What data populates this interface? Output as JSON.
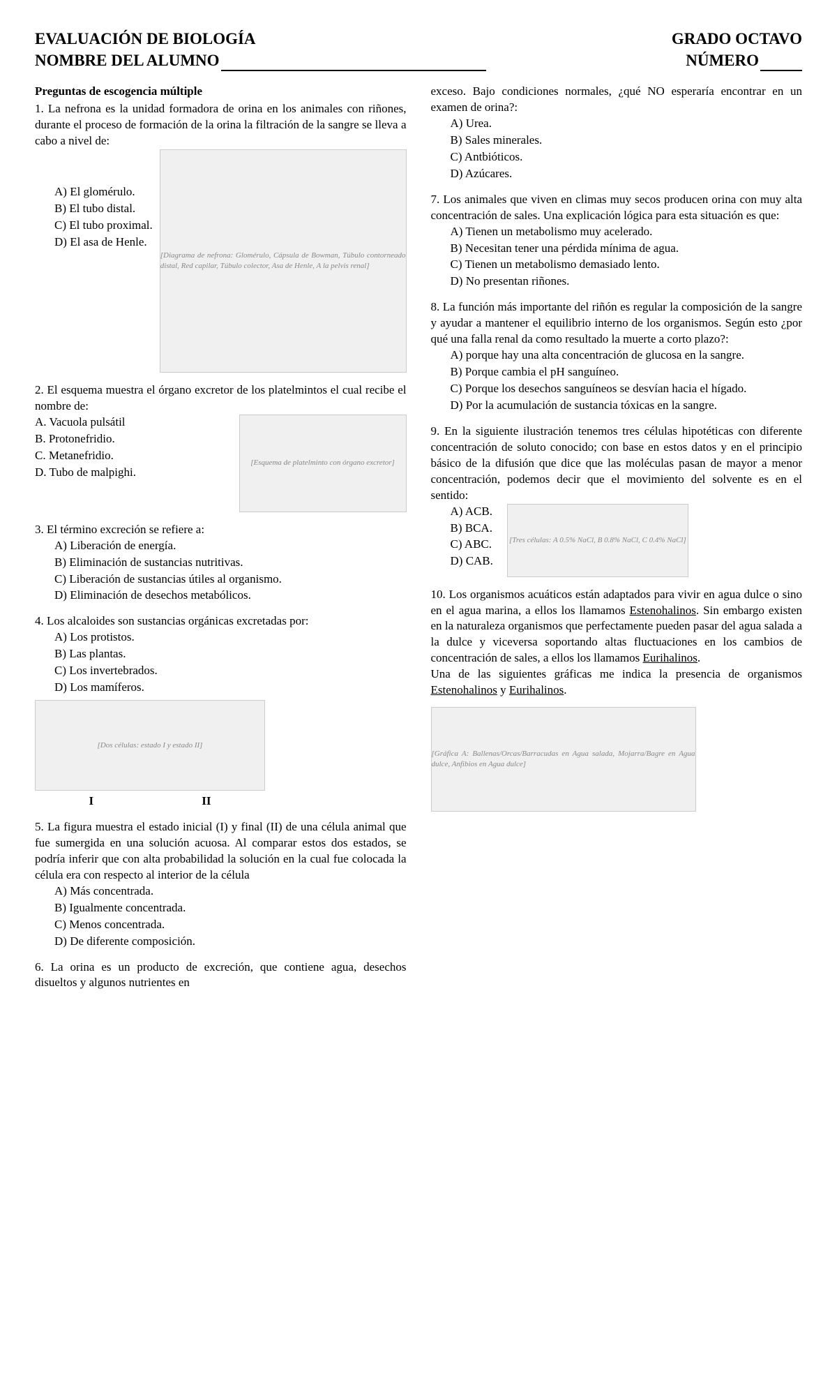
{
  "header": {
    "title1": "EVALUACIÓN DE BIOLOGÍA",
    "title2": "NOMBRE DEL ALUMNO",
    "right1": "GRADO OCTAVO",
    "right2": "NÚMERO"
  },
  "section_title": "Preguntas de escogencia múltiple",
  "q1": {
    "text": "1. La nefrona es la unidad formadora de orina en los animales con riñones, durante el proceso de formación de la orina la filtración de la sangre se lleva a cabo a nivel de:",
    "a": "A) El glomérulo.",
    "b": "B) El tubo distal.",
    "c": "C) El tubo proximal.",
    "d": "D) El asa de Henle.",
    "image_alt": "[Diagrama de nefrona: Glomérulo, Cápsula de Bowman, Túbulo contorneado distal, Red capilar, Túbulo colector, Asa de Henle, A la pelvis renal]"
  },
  "q2": {
    "text": "2. El esquema muestra el órgano excretor de los platelmintos el cual recibe el nombre de:",
    "a": "A. Vacuola pulsátil",
    "b": "B. Protonefridio.",
    "c": "C. Metanefridio.",
    "d": "D. Tubo de malpighi.",
    "image_alt": "[Esquema de platelminto con órgano excretor]"
  },
  "q3": {
    "text": "3. El término excreción se refiere a:",
    "a": "A) Liberación de energía.",
    "b": "B) Eliminación de sustancias nutritivas.",
    "c": "C) Liberación de sustancias útiles al organismo.",
    "d": "D) Eliminación de desechos metabólicos."
  },
  "q4": {
    "text": "4. Los alcaloides son sustancias orgánicas excretadas por:",
    "a": "A) Los protistos.",
    "b": "B) Las plantas.",
    "c": "C) Los invertebrados.",
    "d": "D) Los mamíferos.",
    "image_alt": "[Dos células: estado I y estado II]",
    "label_i": "I",
    "label_ii": "II"
  },
  "q5": {
    "text": "5. La figura muestra el estado inicial (I) y final (II) de una célula animal que fue sumergida en una solución acuosa. Al comparar estos dos estados, se podría inferir que con alta probabilidad la solución en la cual fue colocada la célula era con respecto al interior de la célula",
    "a": "A) Más concentrada.",
    "b": "B) Igualmente concentrada.",
    "c": "C) Menos concentrada.",
    "d": "D) De diferente composición."
  },
  "q6": {
    "text_part1": "6. La orina es un producto de excreción, que contiene agua, desechos disueltos y algunos nutrientes en ",
    "text_part2": "exceso. Bajo condiciones normales, ¿qué NO esperaría encontrar en un examen de orina?:",
    "a": "A) Urea.",
    "b": "B) Sales minerales.",
    "c": "C) Antbióticos.",
    "d": "D) Azúcares."
  },
  "q7": {
    "text": "7. Los animales que viven en climas muy secos producen orina con muy alta concentración de sales. Una explicación lógica para esta situación es que:",
    "a": "A) Tienen un metabolismo muy acelerado.",
    "b": "B) Necesitan tener una pérdida mínima de agua.",
    "c": "C) Tienen un metabolismo demasiado lento.",
    "d": "D) No presentan riñones."
  },
  "q8": {
    "text": "8. La función más importante del riñón es regular la composición de la sangre y ayudar a mantener el equilibrio interno de los organismos. Según esto ¿por qué una falla renal da como resultado la muerte a corto plazo?:",
    "a": "A) porque hay una alta concentración de glucosa en la sangre.",
    "b": "B) Porque cambia el pH sanguíneo.",
    "c": "C) Porque los desechos sanguíneos se desvían hacia el hígado.",
    "d": "D) Por la acumulación de sustancia tóxicas en la sangre."
  },
  "q9": {
    "text": "9. En la siguiente ilustración tenemos tres células hipotéticas con diferente concentración de soluto conocido; con base en estos datos y en el principio básico de la difusión que dice que las moléculas pasan de mayor a menor concentración, podemos decir que el movimiento del solvente es en el sentido:",
    "a": "A) ACB.",
    "b": "B) BCA.",
    "c": "C) ABC.",
    "d": "D) CAB.",
    "image_alt": "[Tres células: A 0.5% NaCl, B 0.8% NaCl, C 0.4% NaCl]"
  },
  "q10": {
    "text1": "10. Los organismos acuáticos están adaptados para vivir en agua dulce o sino en el agua marina, a ellos los llamamos ",
    "u1": "Estenohalinos",
    "text2": ". Sin embargo existen en la naturaleza organismos que perfectamente pueden pasar del agua salada a la dulce y viceversa soportando altas fluctuaciones en los cambios de concentración de sales, a ellos los llamamos ",
    "u2": "Eurihalinos",
    "text3": ".",
    "text4": "Una de las siguientes gráficas me indica la presencia de organismos ",
    "u3": "Estenohalinos",
    "text5": " y ",
    "u4": "Eurihalinos",
    "text6": ".",
    "image_alt": "[Gráfica A: Ballenas/Orcas/Barracudas en Agua salada, Mojarra/Bagre en Agua dulce, Anfibios en Agua dulce]"
  }
}
